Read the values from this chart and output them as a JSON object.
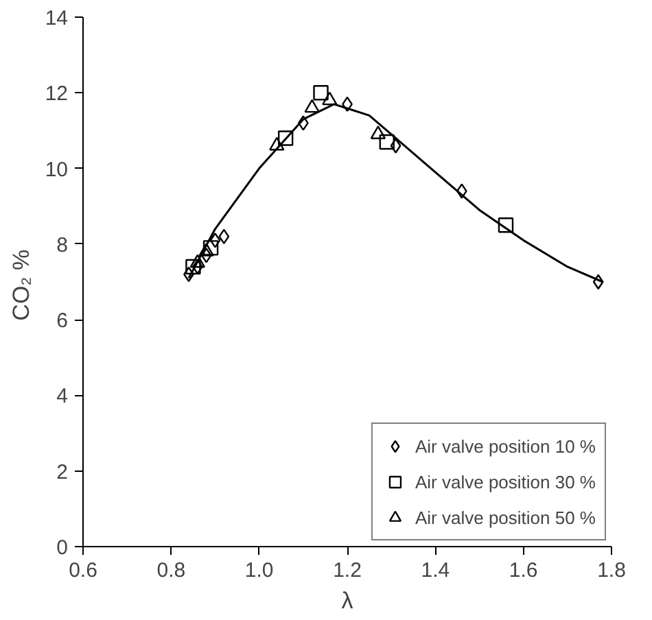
{
  "chart_data": {
    "type": "scatter",
    "xlabel": "λ",
    "ylabel": "CO₂  %",
    "xlim": [
      0.6,
      1.8
    ],
    "xticks": [
      {
        "value": 0.6,
        "label": "0.6"
      },
      {
        "value": 0.8,
        "label": "0.8"
      },
      {
        "value": 1.0,
        "label": "1.0"
      },
      {
        "value": 1.2,
        "label": "1.2"
      },
      {
        "value": 1.4,
        "label": "1.4"
      },
      {
        "value": 1.6,
        "label": "1.6"
      },
      {
        "value": 1.8,
        "label": "1.8"
      }
    ],
    "ylim": [
      0,
      14
    ],
    "yticks": [
      0,
      2,
      4,
      6,
      8,
      10,
      12,
      14
    ],
    "grid": false,
    "legend": "bottom right",
    "series": [
      {
        "name": "Air valve position 10 %",
        "color": "#000000",
        "marker": "diamond",
        "x": [
          0.84,
          0.86,
          0.88,
          0.9,
          0.92,
          1.1,
          1.2,
          1.31,
          1.46,
          1.77
        ],
        "values": [
          7.2,
          7.4,
          7.7,
          8.1,
          8.2,
          11.2,
          11.7,
          10.6,
          9.4,
          7.0
        ]
      },
      {
        "name": "Air valve position 30 %",
        "color": "#000000",
        "marker": "square",
        "x": [
          0.85,
          0.89,
          1.06,
          1.14,
          1.29,
          1.56
        ],
        "values": [
          7.4,
          7.9,
          10.8,
          12.0,
          10.7,
          8.5
        ]
      },
      {
        "name": "Air valve position 50 %",
        "color": "#000000",
        "marker": "triangle",
        "x": [
          0.86,
          0.88,
          1.04,
          1.12,
          1.16,
          1.27
        ],
        "values": [
          7.5,
          7.8,
          10.6,
          11.6,
          11.8,
          10.9
        ]
      },
      {
        "type": "line",
        "color": "#000000",
        "x": [
          0.84,
          0.9,
          1.0,
          1.1,
          1.17,
          1.25,
          1.3,
          1.4,
          1.5,
          1.6,
          1.7,
          1.78
        ],
        "values": [
          7.1,
          8.4,
          10.0,
          11.3,
          11.7,
          11.4,
          10.9,
          9.9,
          8.9,
          8.1,
          7.4,
          7.0
        ]
      }
    ]
  }
}
